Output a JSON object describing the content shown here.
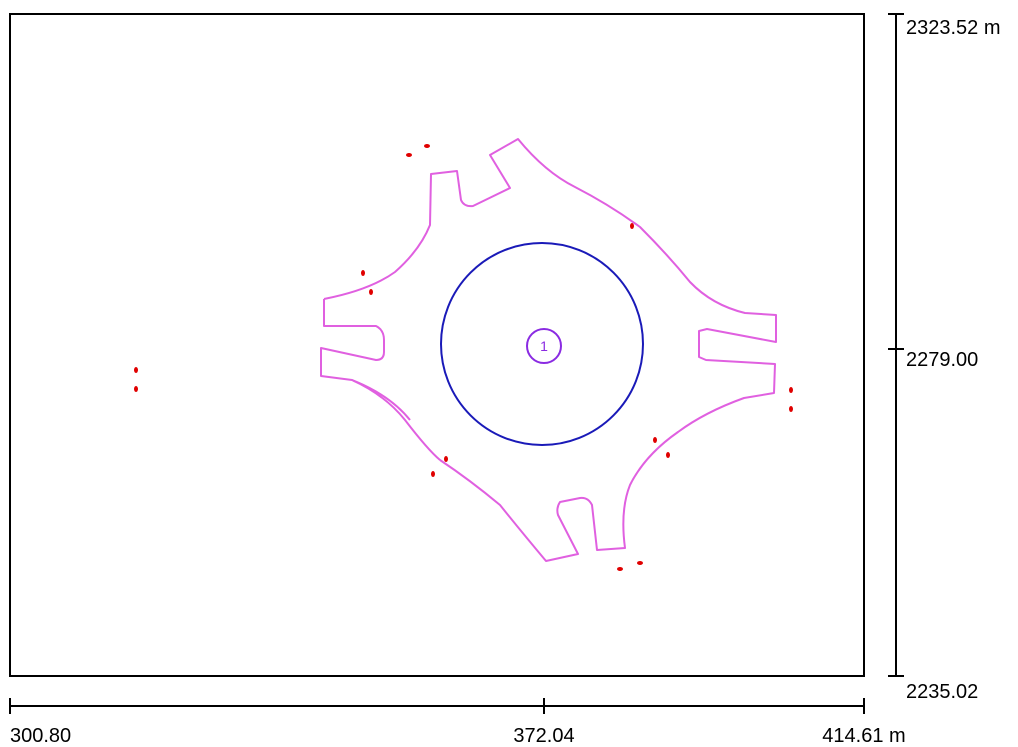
{
  "x_scale": {
    "min_label": "300.80",
    "mid_label": "372.04",
    "max_label": "414.61 m"
  },
  "y_scale": {
    "top_label": "2323.52 m",
    "mid_label": "2279.00",
    "bottom_label": "2235.02"
  },
  "roundabout": {
    "id_label": "1"
  },
  "colors": {
    "frame": "#000000",
    "curb": "#e060e0",
    "central_island": "#1a1ab8",
    "node_marker": "#8a2be2",
    "detector": "#e00000"
  }
}
